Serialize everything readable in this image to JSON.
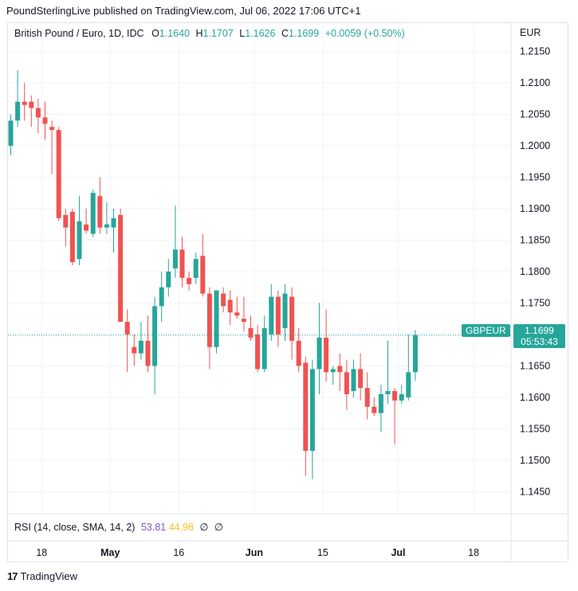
{
  "publisher_line": "PoundSterlingLive published on TradingView.com, Jul 06, 2022 17:06 UTC+1",
  "legend": {
    "title": "British Pound / Euro, 1D, IDC",
    "o_label": "O",
    "o_value": "1.1640",
    "h_label": "H",
    "h_value": "1.1707",
    "l_label": "L",
    "l_value": "1.1626",
    "c_label": "C",
    "c_value": "1.1699",
    "change": "+0.0059 (+0.50%)"
  },
  "currency_label": "EUR",
  "last_price": {
    "symbol": "GBPEUR",
    "price": "1.1699",
    "countdown": "05:53:43"
  },
  "rsi_legend": {
    "label": "RSI (14, close, SMA, 14, 2)",
    "value1": "53.81",
    "value2": "44.98",
    "sym1": "∅",
    "sym2": "∅"
  },
  "footer": {
    "brand": "TradingView",
    "logo_text": "17"
  },
  "colors": {
    "up": "#26a69a",
    "down": "#ef5350",
    "grid": "#f0f3fa",
    "border": "#e0e3eb",
    "rsi1": "#7e57c2",
    "rsi2": "#f7c324"
  },
  "chart_data": {
    "type": "candlestick",
    "y_ticks": [
      "1.2150",
      "1.2100",
      "1.2050",
      "1.2000",
      "1.1950",
      "1.1900",
      "1.1850",
      "1.1800",
      "1.1750",
      "1.1700",
      "1.1650",
      "1.1600",
      "1.1550",
      "1.1500",
      "1.1450"
    ],
    "ylim": [
      1.1415,
      1.2195
    ],
    "x_ticks": [
      {
        "label": "18",
        "index": 3
      },
      {
        "label": "May",
        "index": 13
      },
      {
        "label": "16",
        "index": 23
      },
      {
        "label": "Jun",
        "index": 34
      },
      {
        "label": "15",
        "index": 44
      },
      {
        "label": "Jul",
        "index": 55
      },
      {
        "label": "18",
        "index": 66
      }
    ],
    "last_price": 1.1699,
    "candles": [
      {
        "o": 1.2,
        "h": 1.205,
        "l": 1.1985,
        "c": 1.204
      },
      {
        "o": 1.204,
        "h": 1.212,
        "l": 1.203,
        "c": 1.207
      },
      {
        "o": 1.207,
        "h": 1.21,
        "l": 1.204,
        "c": 1.2065
      },
      {
        "o": 1.207,
        "h": 1.208,
        "l": 1.203,
        "c": 1.206
      },
      {
        "o": 1.206,
        "h": 1.2075,
        "l": 1.202,
        "c": 1.2045
      },
      {
        "o": 1.2045,
        "h": 1.207,
        "l": 1.201,
        "c": 1.2035
      },
      {
        "o": 1.203,
        "h": 1.204,
        "l": 1.1955,
        "c": 1.2025
      },
      {
        "o": 1.2025,
        "h": 1.203,
        "l": 1.188,
        "c": 1.1885
      },
      {
        "o": 1.189,
        "h": 1.19,
        "l": 1.184,
        "c": 1.187
      },
      {
        "o": 1.1895,
        "h": 1.19,
        "l": 1.181,
        "c": 1.1815
      },
      {
        "o": 1.182,
        "h": 1.192,
        "l": 1.181,
        "c": 1.188
      },
      {
        "o": 1.1875,
        "h": 1.19,
        "l": 1.186,
        "c": 1.1865
      },
      {
        "o": 1.186,
        "h": 1.193,
        "l": 1.1855,
        "c": 1.1925
      },
      {
        "o": 1.192,
        "h": 1.195,
        "l": 1.186,
        "c": 1.187
      },
      {
        "o": 1.187,
        "h": 1.191,
        "l": 1.186,
        "c": 1.1875
      },
      {
        "o": 1.187,
        "h": 1.19,
        "l": 1.183,
        "c": 1.1885
      },
      {
        "o": 1.189,
        "h": 1.19,
        "l": 1.172,
        "c": 1.172
      },
      {
        "o": 1.172,
        "h": 1.174,
        "l": 1.164,
        "c": 1.17
      },
      {
        "o": 1.168,
        "h": 1.17,
        "l": 1.165,
        "c": 1.167
      },
      {
        "o": 1.167,
        "h": 1.172,
        "l": 1.166,
        "c": 1.169
      },
      {
        "o": 1.169,
        "h": 1.173,
        "l": 1.164,
        "c": 1.165
      },
      {
        "o": 1.165,
        "h": 1.176,
        "l": 1.1605,
        "c": 1.1745
      },
      {
        "o": 1.1745,
        "h": 1.18,
        "l": 1.172,
        "c": 1.1775
      },
      {
        "o": 1.1775,
        "h": 1.182,
        "l": 1.176,
        "c": 1.18
      },
      {
        "o": 1.1805,
        "h": 1.1905,
        "l": 1.179,
        "c": 1.1835
      },
      {
        "o": 1.1835,
        "h": 1.1855,
        "l": 1.1775,
        "c": 1.179
      },
      {
        "o": 1.179,
        "h": 1.18,
        "l": 1.177,
        "c": 1.178
      },
      {
        "o": 1.179,
        "h": 1.183,
        "l": 1.178,
        "c": 1.182
      },
      {
        "o": 1.1825,
        "h": 1.186,
        "l": 1.176,
        "c": 1.1765
      },
      {
        "o": 1.1765,
        "h": 1.1775,
        "l": 1.1645,
        "c": 1.168
      },
      {
        "o": 1.168,
        "h": 1.177,
        "l": 1.167,
        "c": 1.177
      },
      {
        "o": 1.1765,
        "h": 1.1775,
        "l": 1.1735,
        "c": 1.1745
      },
      {
        "o": 1.1755,
        "h": 1.177,
        "l": 1.1715,
        "c": 1.1735
      },
      {
        "o": 1.1735,
        "h": 1.176,
        "l": 1.1725,
        "c": 1.173
      },
      {
        "o": 1.1725,
        "h": 1.176,
        "l": 1.1705,
        "c": 1.172
      },
      {
        "o": 1.171,
        "h": 1.173,
        "l": 1.169,
        "c": 1.1695
      },
      {
        "o": 1.17,
        "h": 1.1715,
        "l": 1.164,
        "c": 1.1645
      },
      {
        "o": 1.1645,
        "h": 1.173,
        "l": 1.164,
        "c": 1.171
      },
      {
        "o": 1.17,
        "h": 1.178,
        "l": 1.169,
        "c": 1.176
      },
      {
        "o": 1.176,
        "h": 1.177,
        "l": 1.168,
        "c": 1.17
      },
      {
        "o": 1.171,
        "h": 1.178,
        "l": 1.169,
        "c": 1.1765
      },
      {
        "o": 1.176,
        "h": 1.1775,
        "l": 1.166,
        "c": 1.169
      },
      {
        "o": 1.169,
        "h": 1.171,
        "l": 1.164,
        "c": 1.165
      },
      {
        "o": 1.1655,
        "h": 1.1665,
        "l": 1.1475,
        "c": 1.1515
      },
      {
        "o": 1.1515,
        "h": 1.166,
        "l": 1.147,
        "c": 1.1645
      },
      {
        "o": 1.1645,
        "h": 1.175,
        "l": 1.1605,
        "c": 1.1695
      },
      {
        "o": 1.1695,
        "h": 1.174,
        "l": 1.1625,
        "c": 1.164
      },
      {
        "o": 1.164,
        "h": 1.165,
        "l": 1.162,
        "c": 1.1645
      },
      {
        "o": 1.165,
        "h": 1.167,
        "l": 1.161,
        "c": 1.164
      },
      {
        "o": 1.164,
        "h": 1.166,
        "l": 1.158,
        "c": 1.1605
      },
      {
        "o": 1.161,
        "h": 1.166,
        "l": 1.16,
        "c": 1.1645
      },
      {
        "o": 1.1645,
        "h": 1.167,
        "l": 1.1595,
        "c": 1.1615
      },
      {
        "o": 1.1615,
        "h": 1.164,
        "l": 1.1565,
        "c": 1.1585
      },
      {
        "o": 1.1585,
        "h": 1.16,
        "l": 1.157,
        "c": 1.1575
      },
      {
        "o": 1.1575,
        "h": 1.162,
        "l": 1.1545,
        "c": 1.1605
      },
      {
        "o": 1.1605,
        "h": 1.169,
        "l": 1.159,
        "c": 1.161
      },
      {
        "o": 1.161,
        "h": 1.1615,
        "l": 1.1525,
        "c": 1.1595
      },
      {
        "o": 1.1595,
        "h": 1.162,
        "l": 1.159,
        "c": 1.1605
      },
      {
        "o": 1.16,
        "h": 1.17,
        "l": 1.1595,
        "c": 1.164
      },
      {
        "o": 1.164,
        "h": 1.1707,
        "l": 1.1626,
        "c": 1.1699
      }
    ]
  }
}
